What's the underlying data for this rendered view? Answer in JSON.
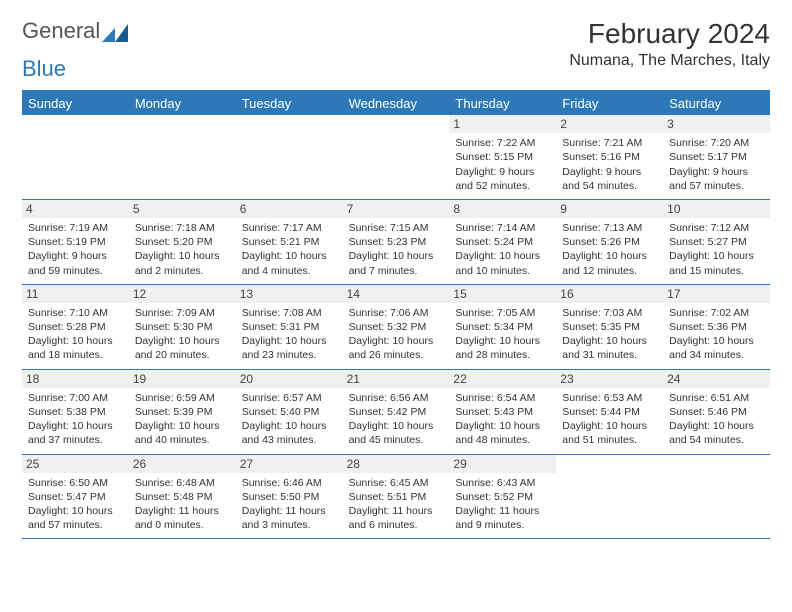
{
  "logo": {
    "text1": "General",
    "text2": "Blue"
  },
  "title": "February 2024",
  "location": "Numana, The Marches, Italy",
  "day_names": [
    "Sunday",
    "Monday",
    "Tuesday",
    "Wednesday",
    "Thursday",
    "Friday",
    "Saturday"
  ],
  "colors": {
    "accent": "#2d79b8",
    "header_bg": "#eef0f1",
    "text": "#333333"
  },
  "weeks": [
    [
      null,
      null,
      null,
      null,
      {
        "n": "1",
        "sr": "Sunrise: 7:22 AM",
        "ss": "Sunset: 5:15 PM",
        "dl": "Daylight: 9 hours and 52 minutes."
      },
      {
        "n": "2",
        "sr": "Sunrise: 7:21 AM",
        "ss": "Sunset: 5:16 PM",
        "dl": "Daylight: 9 hours and 54 minutes."
      },
      {
        "n": "3",
        "sr": "Sunrise: 7:20 AM",
        "ss": "Sunset: 5:17 PM",
        "dl": "Daylight: 9 hours and 57 minutes."
      }
    ],
    [
      {
        "n": "4",
        "sr": "Sunrise: 7:19 AM",
        "ss": "Sunset: 5:19 PM",
        "dl": "Daylight: 9 hours and 59 minutes."
      },
      {
        "n": "5",
        "sr": "Sunrise: 7:18 AM",
        "ss": "Sunset: 5:20 PM",
        "dl": "Daylight: 10 hours and 2 minutes."
      },
      {
        "n": "6",
        "sr": "Sunrise: 7:17 AM",
        "ss": "Sunset: 5:21 PM",
        "dl": "Daylight: 10 hours and 4 minutes."
      },
      {
        "n": "7",
        "sr": "Sunrise: 7:15 AM",
        "ss": "Sunset: 5:23 PM",
        "dl": "Daylight: 10 hours and 7 minutes."
      },
      {
        "n": "8",
        "sr": "Sunrise: 7:14 AM",
        "ss": "Sunset: 5:24 PM",
        "dl": "Daylight: 10 hours and 10 minutes."
      },
      {
        "n": "9",
        "sr": "Sunrise: 7:13 AM",
        "ss": "Sunset: 5:26 PM",
        "dl": "Daylight: 10 hours and 12 minutes."
      },
      {
        "n": "10",
        "sr": "Sunrise: 7:12 AM",
        "ss": "Sunset: 5:27 PM",
        "dl": "Daylight: 10 hours and 15 minutes."
      }
    ],
    [
      {
        "n": "11",
        "sr": "Sunrise: 7:10 AM",
        "ss": "Sunset: 5:28 PM",
        "dl": "Daylight: 10 hours and 18 minutes."
      },
      {
        "n": "12",
        "sr": "Sunrise: 7:09 AM",
        "ss": "Sunset: 5:30 PM",
        "dl": "Daylight: 10 hours and 20 minutes."
      },
      {
        "n": "13",
        "sr": "Sunrise: 7:08 AM",
        "ss": "Sunset: 5:31 PM",
        "dl": "Daylight: 10 hours and 23 minutes."
      },
      {
        "n": "14",
        "sr": "Sunrise: 7:06 AM",
        "ss": "Sunset: 5:32 PM",
        "dl": "Daylight: 10 hours and 26 minutes."
      },
      {
        "n": "15",
        "sr": "Sunrise: 7:05 AM",
        "ss": "Sunset: 5:34 PM",
        "dl": "Daylight: 10 hours and 28 minutes."
      },
      {
        "n": "16",
        "sr": "Sunrise: 7:03 AM",
        "ss": "Sunset: 5:35 PM",
        "dl": "Daylight: 10 hours and 31 minutes."
      },
      {
        "n": "17",
        "sr": "Sunrise: 7:02 AM",
        "ss": "Sunset: 5:36 PM",
        "dl": "Daylight: 10 hours and 34 minutes."
      }
    ],
    [
      {
        "n": "18",
        "sr": "Sunrise: 7:00 AM",
        "ss": "Sunset: 5:38 PM",
        "dl": "Daylight: 10 hours and 37 minutes."
      },
      {
        "n": "19",
        "sr": "Sunrise: 6:59 AM",
        "ss": "Sunset: 5:39 PM",
        "dl": "Daylight: 10 hours and 40 minutes."
      },
      {
        "n": "20",
        "sr": "Sunrise: 6:57 AM",
        "ss": "Sunset: 5:40 PM",
        "dl": "Daylight: 10 hours and 43 minutes."
      },
      {
        "n": "21",
        "sr": "Sunrise: 6:56 AM",
        "ss": "Sunset: 5:42 PM",
        "dl": "Daylight: 10 hours and 45 minutes."
      },
      {
        "n": "22",
        "sr": "Sunrise: 6:54 AM",
        "ss": "Sunset: 5:43 PM",
        "dl": "Daylight: 10 hours and 48 minutes."
      },
      {
        "n": "23",
        "sr": "Sunrise: 6:53 AM",
        "ss": "Sunset: 5:44 PM",
        "dl": "Daylight: 10 hours and 51 minutes."
      },
      {
        "n": "24",
        "sr": "Sunrise: 6:51 AM",
        "ss": "Sunset: 5:46 PM",
        "dl": "Daylight: 10 hours and 54 minutes."
      }
    ],
    [
      {
        "n": "25",
        "sr": "Sunrise: 6:50 AM",
        "ss": "Sunset: 5:47 PM",
        "dl": "Daylight: 10 hours and 57 minutes."
      },
      {
        "n": "26",
        "sr": "Sunrise: 6:48 AM",
        "ss": "Sunset: 5:48 PM",
        "dl": "Daylight: 11 hours and 0 minutes."
      },
      {
        "n": "27",
        "sr": "Sunrise: 6:46 AM",
        "ss": "Sunset: 5:50 PM",
        "dl": "Daylight: 11 hours and 3 minutes."
      },
      {
        "n": "28",
        "sr": "Sunrise: 6:45 AM",
        "ss": "Sunset: 5:51 PM",
        "dl": "Daylight: 11 hours and 6 minutes."
      },
      {
        "n": "29",
        "sr": "Sunrise: 6:43 AM",
        "ss": "Sunset: 5:52 PM",
        "dl": "Daylight: 11 hours and 9 minutes."
      },
      null,
      null
    ]
  ]
}
